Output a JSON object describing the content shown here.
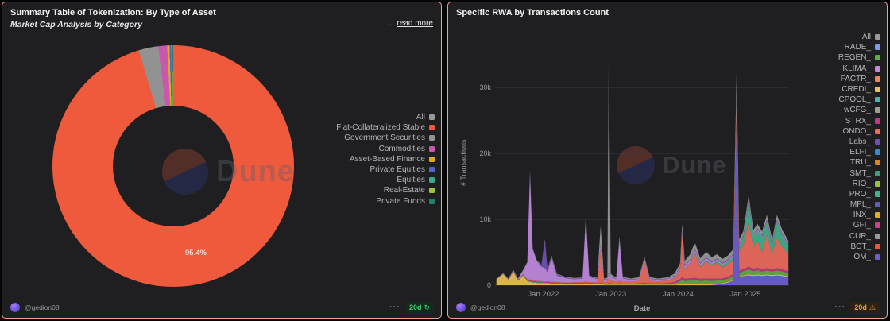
{
  "page": {
    "background": "#060606",
    "panel_bg": "#1f1f22",
    "panel_border": "#efa28c"
  },
  "left_panel": {
    "title": "Summary Table of Tokenization: By Type of Asset",
    "subtitle": "Market Cap Analysis by Category",
    "truncation_ellipsis": "...",
    "read_more_label": "read more",
    "watermark": "Dune",
    "slice_label": "95.4%",
    "legend": [
      {
        "label": "All",
        "color": "#9a9a9a"
      },
      {
        "label": "Fiat-Collateralized Stable",
        "color": "#ef5a3c"
      },
      {
        "label": "Government Securities",
        "color": "#929292"
      },
      {
        "label": "Commodities",
        "color": "#c957ae"
      },
      {
        "label": "Asset-Based Finance",
        "color": "#e3a81c"
      },
      {
        "label": "Private Equities",
        "color": "#5560c8"
      },
      {
        "label": "Equities",
        "color": "#3aa890"
      },
      {
        "label": "Real-Estate",
        "color": "#9dc43c"
      },
      {
        "label": "Private Funds",
        "color": "#25806a"
      }
    ],
    "footer": {
      "author": "@gedion08",
      "menu_icon": "···",
      "age_badge": "20d",
      "age_icon": "↻"
    }
  },
  "right_panel": {
    "title": "Specific RWA by Transactions Count",
    "watermark": "Dune",
    "y_axis_label": "# Transactions",
    "x_axis_label": "Date",
    "legend": [
      {
        "label": "All",
        "color": "#9a9a9a"
      },
      {
        "label": "TRADE_",
        "color": "#7d9ae8"
      },
      {
        "label": "REGEN_",
        "color": "#5fae44"
      },
      {
        "label": "KLIMA_",
        "color": "#c18ae0"
      },
      {
        "label": "FACTR_",
        "color": "#f08560"
      },
      {
        "label": "CREDI_",
        "color": "#eec05c"
      },
      {
        "label": "CPOOL_",
        "color": "#4ab4ac"
      },
      {
        "label": "wCFG_",
        "color": "#a0a090"
      },
      {
        "label": "STRX_",
        "color": "#c23487"
      },
      {
        "label": "ONDO_",
        "color": "#ed6a5e"
      },
      {
        "label": "Labs_",
        "color": "#7050b8"
      },
      {
        "label": "ELFI_",
        "color": "#3a88c8"
      },
      {
        "label": "TRU_",
        "color": "#e0861f"
      },
      {
        "label": "SMT_",
        "color": "#3f9e78"
      },
      {
        "label": "RIO_",
        "color": "#9ac23c"
      },
      {
        "label": "PRO_",
        "color": "#3fb28c"
      },
      {
        "label": "MPL_",
        "color": "#5a5fc0"
      },
      {
        "label": "INX_",
        "color": "#e2ae2a"
      },
      {
        "label": "GFI_",
        "color": "#d04090"
      },
      {
        "label": "CUR_",
        "color": "#9a9a9a"
      },
      {
        "label": "BCT_",
        "color": "#e85840"
      },
      {
        "label": "OM_",
        "color": "#6a5fd0"
      }
    ],
    "footer": {
      "author": "@gedion08",
      "menu_icon": "···",
      "age_badge": "20d",
      "age_icon": "⚠"
    }
  },
  "chart_data": [
    {
      "type": "pie",
      "title": "Summary Table of Tokenization: By Type of Asset",
      "subtitle": "Market Cap Analysis by Category",
      "donut": true,
      "categories": [
        "Fiat-Collateralized Stable",
        "Government Securities",
        "Commodities",
        "Asset-Based Finance",
        "Private Equities",
        "Equities",
        "Real-Estate",
        "Private Funds"
      ],
      "values": [
        95.4,
        2.6,
        1.2,
        0.3,
        0.2,
        0.1,
        0.1,
        0.1
      ],
      "colors": [
        "#ef5a3c",
        "#929292",
        "#c957ae",
        "#e3a81c",
        "#5560c8",
        "#3aa890",
        "#9dc43c",
        "#25806a"
      ],
      "data_label": "95.4%",
      "legend_position": "right"
    },
    {
      "type": "area",
      "stacked": true,
      "title": "Specific RWA by Transactions Count",
      "xlabel": "Date",
      "ylabel": "# Transactions",
      "ylim": [
        0,
        36000
      ],
      "y_ticks": [
        0,
        10000,
        20000,
        30000
      ],
      "y_tick_labels": [
        "0",
        "10k",
        "20k",
        "30k"
      ],
      "x_ticks": [
        2022,
        2023,
        2024,
        2025
      ],
      "x_tick_labels": [
        "Jan 2022",
        "Jan 2023",
        "Jan 2024",
        "Jan 2025"
      ],
      "x_range": [
        2021.28,
        2025.65
      ],
      "grid": true,
      "legend_position": "right",
      "values_unit": "thousand transactions",
      "x": [
        2021.3,
        2021.4,
        2021.48,
        2021.55,
        2021.62,
        2021.7,
        2021.76,
        2021.8,
        2021.84,
        2021.9,
        2021.97,
        2022.02,
        2022.06,
        2022.12,
        2022.2,
        2022.32,
        2022.45,
        2022.58,
        2022.63,
        2022.68,
        2022.8,
        2022.85,
        2022.9,
        2022.95,
        2022.97,
        2023.0,
        2023.08,
        2023.13,
        2023.18,
        2023.3,
        2023.42,
        2023.5,
        2023.58,
        2023.7,
        2023.85,
        2023.95,
        2024.03,
        2024.06,
        2024.1,
        2024.18,
        2024.25,
        2024.33,
        2024.42,
        2024.5,
        2024.58,
        2024.66,
        2024.74,
        2024.82,
        2024.87,
        2024.91,
        2024.97,
        2025.05,
        2025.12,
        2025.18,
        2025.25,
        2025.32,
        2025.4,
        2025.47,
        2025.55,
        2025.64
      ],
      "series": [
        {
          "name": "OM_",
          "color": "#6a5fd0",
          "values": [
            0,
            0,
            0,
            0,
            0,
            0,
            0,
            0,
            0,
            0,
            0,
            0,
            0,
            0,
            0,
            0,
            0,
            0,
            0,
            0,
            0,
            0,
            0,
            0,
            0,
            0,
            0,
            0,
            0,
            0,
            0,
            0,
            0,
            0,
            0,
            0,
            0,
            0,
            0,
            0,
            0,
            0,
            0,
            0,
            0.1,
            0.2,
            0.4,
            0.7,
            24,
            1.2,
            1.4,
            1.5,
            1.4,
            1.5,
            1.4,
            1.5,
            1.4,
            1.5,
            1.4,
            1.2
          ]
        },
        {
          "name": "CREDI_",
          "color": "#eec05c",
          "values": [
            0.9,
            1.7,
            0.8,
            2.1,
            0.7,
            1.5,
            0.6,
            0.5,
            0.4,
            0.35,
            0.3,
            0.3,
            0.3,
            0.25,
            0.25,
            0.2,
            0.2,
            0.2,
            0.2,
            0.2,
            0.15,
            0.15,
            0.1,
            0.1,
            0.1,
            0.1,
            0.1,
            0.1,
            0.1,
            0.1,
            0.1,
            0.1,
            0.1,
            0.1,
            0.1,
            0.1,
            0.12,
            0.12,
            0.12,
            0.12,
            0.12,
            0.12,
            0.12,
            0.12,
            0.12,
            0.12,
            0.12,
            0.12,
            0.12,
            0.12,
            0.12,
            0.15,
            0.15,
            0.15,
            0.15,
            0.15,
            0.15,
            0.15,
            0.15,
            0.15
          ]
        },
        {
          "name": "REGEN_",
          "color": "#5fae44",
          "values": [
            0.02,
            0.03,
            0.05,
            0.05,
            0.06,
            0.1,
            0.12,
            0.15,
            0.15,
            0.12,
            0.12,
            0.1,
            0.1,
            0.1,
            0.08,
            0.08,
            0.08,
            0.08,
            0.1,
            0.08,
            0.08,
            0.1,
            0.08,
            0.08,
            0.15,
            0.1,
            0.08,
            0.1,
            0.08,
            0.08,
            0.1,
            0.15,
            0.1,
            0.1,
            0.12,
            0.25,
            0.5,
            0.7,
            0.55,
            0.6,
            0.65,
            0.55,
            0.6,
            0.55,
            0.5,
            0.45,
            0.5,
            0.55,
            0.5,
            0.55,
            0.6,
            0.75,
            0.6,
            0.65,
            0.55,
            0.6,
            0.55,
            0.6,
            0.55,
            0.5
          ]
        },
        {
          "name": "STRX_",
          "color": "#c23487",
          "values": [
            0,
            0,
            0.02,
            0.02,
            0.03,
            0.05,
            0.08,
            0.1,
            0.1,
            0.08,
            0.08,
            0.08,
            0.08,
            0.06,
            0.05,
            0.05,
            0.05,
            0.05,
            0.08,
            0.05,
            0.05,
            0.08,
            0.05,
            0.05,
            0.1,
            0.06,
            0.05,
            0.08,
            0.05,
            0.05,
            0.08,
            0.1,
            0.08,
            0.08,
            0.1,
            0.15,
            0.3,
            0.4,
            0.3,
            0.35,
            0.35,
            0.3,
            0.3,
            0.3,
            0.28,
            0.25,
            0.28,
            0.3,
            0.3,
            0.3,
            0.32,
            0.4,
            0.35,
            0.35,
            0.3,
            0.35,
            0.3,
            0.35,
            0.3,
            0.28
          ]
        },
        {
          "name": "ONDO_",
          "color": "#ed6a5e",
          "values": [
            0,
            0,
            0,
            0.02,
            0.02,
            0.05,
            0.08,
            0.1,
            0.1,
            0.1,
            0.12,
            0.12,
            0.12,
            0.1,
            0.1,
            0.08,
            0.1,
            0.15,
            0.2,
            0.15,
            0.15,
            5,
            0.2,
            0.3,
            0.8,
            0.5,
            0.3,
            0.4,
            0.3,
            0.3,
            0.4,
            3.2,
            0.4,
            0.3,
            0.4,
            0.6,
            1.2,
            6.5,
            1.4,
            2.2,
            3.8,
            1.8,
            2.6,
            2,
            2.4,
            1.7,
            1.9,
            2.2,
            2.6,
            3,
            3.6,
            6.8,
            3.2,
            4.2,
            2.6,
            5.2,
            2.4,
            4.6,
            3.4,
            2.6
          ]
        },
        {
          "name": "PRO_",
          "color": "#3fb28c",
          "values": [
            0,
            0,
            0,
            0,
            0,
            0,
            0,
            0,
            0,
            0,
            0,
            0,
            0,
            0,
            0,
            0,
            0,
            0,
            0,
            0,
            0,
            0,
            0,
            0,
            0,
            0,
            0,
            0,
            0,
            0,
            0,
            0,
            0,
            0,
            0,
            0.05,
            0.1,
            0.15,
            0.1,
            0.12,
            0.15,
            0.12,
            0.15,
            0.2,
            0.25,
            0.3,
            0.35,
            0.45,
            0.5,
            0.7,
            1.1,
            2.8,
            1.6,
            1.4,
            2.2,
            1.8,
            1.2,
            2.4,
            1.6,
            1.2
          ]
        },
        {
          "name": "KLIMA_",
          "color": "#c18ae0",
          "values": [
            0.02,
            0.05,
            0.08,
            0.1,
            0.15,
            0.6,
            2.5,
            16.2,
            4.6,
            3,
            2.2,
            2,
            1.4,
            3.6,
            1,
            0.7,
            0.5,
            0.5,
            9.8,
            0.8,
            0.5,
            0.8,
            0.4,
            0.4,
            0.8,
            0.5,
            0.4,
            6.2,
            0.5,
            0.3,
            0.3,
            0.4,
            0.3,
            0.25,
            0.25,
            0.3,
            0.4,
            0.5,
            0.45,
            0.4,
            0.45,
            0.4,
            0.35,
            0.3,
            0.3,
            0.25,
            0.25,
            0.3,
            0.3,
            0.28,
            0.25,
            0.3,
            0.25,
            0.25,
            0.22,
            0.25,
            0.22,
            0.25,
            0.22,
            0.2
          ]
        },
        {
          "name": "Labs_",
          "color": "#7050b8",
          "values": [
            0,
            0,
            0,
            0,
            0,
            0,
            0,
            0,
            0,
            0,
            0.1,
            4.2,
            0.3,
            0.2,
            0.15,
            0.1,
            0.08,
            0.08,
            0.1,
            0.08,
            0.06,
            0.08,
            0.05,
            0.05,
            0.1,
            0.06,
            0.05,
            0.08,
            0.05,
            0.04,
            0.05,
            0.06,
            0.05,
            0.05,
            0.05,
            0.06,
            0.1,
            0.12,
            0.1,
            0.1,
            0.1,
            0.1,
            0.1,
            0.1,
            0.1,
            0.1,
            0.1,
            0.12,
            0.12,
            0.12,
            0.12,
            0.15,
            0.12,
            0.12,
            0.12,
            0.12,
            0.12,
            0.12,
            0.12,
            0.1
          ]
        },
        {
          "name": "CUR_",
          "color": "#9a9a9a",
          "values": [
            0.05,
            0.06,
            0.06,
            0.08,
            0.06,
            0.1,
            0.15,
            0.3,
            0.2,
            0.15,
            0.15,
            0.2,
            0.15,
            0.2,
            0.12,
            0.1,
            0.1,
            0.12,
            0.3,
            0.12,
            0.12,
            2.8,
            0.15,
            0.2,
            34,
            0.4,
            0.2,
            0.4,
            0.2,
            0.15,
            0.2,
            0.3,
            0.2,
            0.15,
            0.2,
            0.3,
            0.6,
            0.8,
            0.7,
            0.8,
            0.9,
            0.7,
            0.8,
            0.7,
            0.65,
            0.6,
            0.6,
            0.7,
            4,
            0.7,
            0.65,
            0.8,
            0.7,
            0.7,
            0.6,
            0.7,
            0.6,
            0.7,
            0.6,
            0.5
          ]
        }
      ]
    }
  ]
}
